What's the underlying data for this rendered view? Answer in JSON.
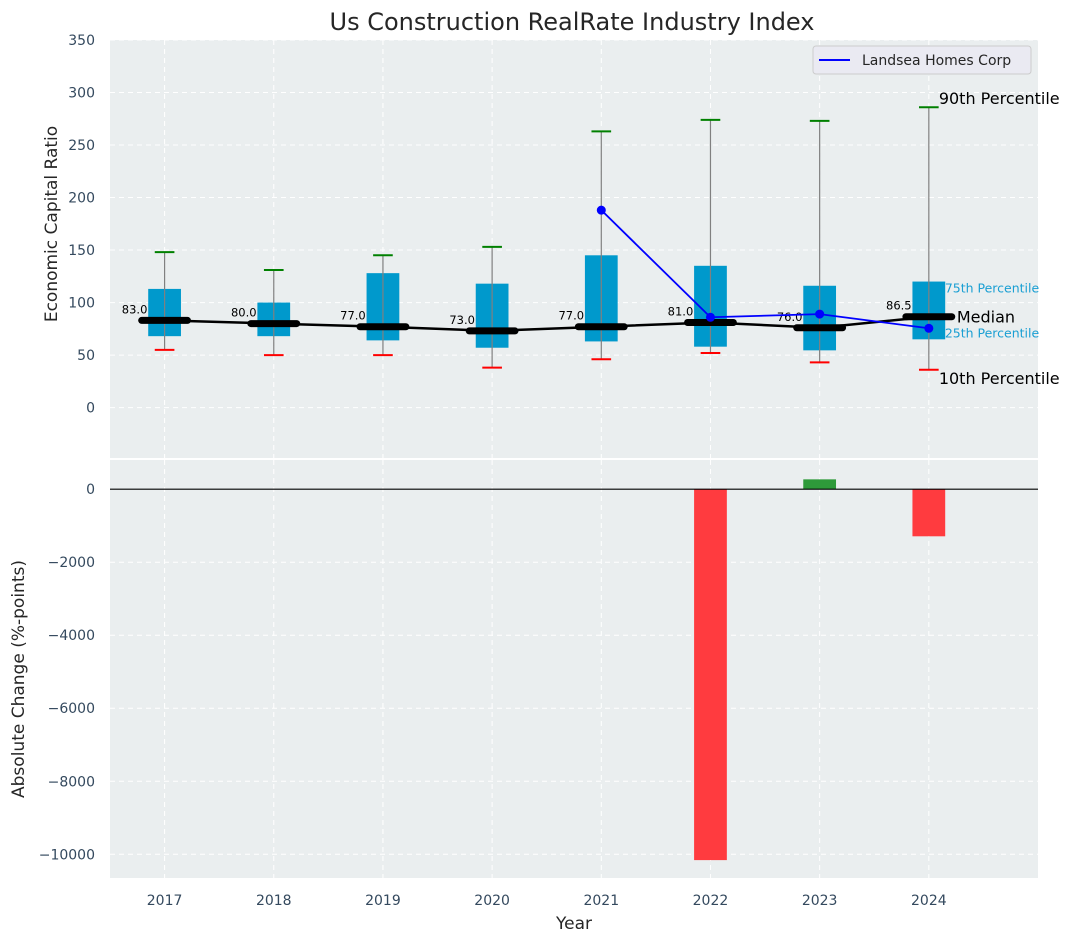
{
  "chart_data": [
    {
      "type": "box",
      "panel": "top",
      "title": "Us Construction RealRate Industry Index",
      "xlabel": "",
      "ylabel": "Economic Capital Ratio",
      "ylim": [
        -48,
        350
      ],
      "xlim": [
        2016.5,
        2025
      ],
      "yticks": [
        0,
        50,
        100,
        150,
        200,
        250,
        300,
        350
      ],
      "grid": true,
      "categories": [
        2017,
        2018,
        2019,
        2020,
        2021,
        2022,
        2023,
        2024
      ],
      "p10": [
        55,
        50,
        50,
        38,
        46,
        52,
        43,
        36
      ],
      "p25": [
        68,
        68,
        64,
        57,
        63,
        58,
        54.5,
        65
      ],
      "median": [
        83.0,
        80.0,
        77.0,
        73.0,
        77.0,
        81.0,
        76.0,
        86.5
      ],
      "p75": [
        113,
        100,
        128,
        118,
        145,
        135,
        116,
        120
      ],
      "p90": [
        148,
        131,
        145,
        153,
        263,
        274,
        273,
        286
      ],
      "median_labels": [
        "83.0",
        "80.0",
        "77.0",
        "73.0",
        "77.0",
        "81.0",
        "76.0",
        "86.5"
      ],
      "series": [
        {
          "name": "Landsea Homes Corp",
          "x": [
            2021,
            2022,
            2023,
            2024
          ],
          "values": [
            188,
            86,
            89,
            75.5
          ],
          "color": "#0000ff"
        }
      ],
      "legend": {
        "entries": [
          "Landsea Homes Corp"
        ],
        "placement": "top-right"
      },
      "annotations": {
        "p90": "90th Percentile",
        "p75": "75th Percentile",
        "median": "Median",
        "p25": "25th Percentile",
        "p10": "10th Percentile"
      },
      "colors": {
        "box": "#0099cc",
        "median": "#000000",
        "p90_cap": "#008000",
        "p10_cap": "#ff0000",
        "whisker": "#808080",
        "annotation_cyan": "#1a9fd3",
        "background": "#eaeeef"
      }
    },
    {
      "type": "bar",
      "panel": "bottom",
      "xlabel": "Year",
      "ylabel": "Absolute Change (%-points)",
      "ylim": [
        -10650,
        800
      ],
      "xlim": [
        2016.5,
        2025
      ],
      "yticks": [
        0,
        -2000,
        -4000,
        -6000,
        -8000,
        -10000
      ],
      "ytick_labels": [
        "0",
        "−2000",
        "−4000",
        "−6000",
        "−8000",
        "−10000"
      ],
      "grid": true,
      "categories": [
        2017,
        2018,
        2019,
        2020,
        2021,
        2022,
        2023,
        2024
      ],
      "x": [
        2022,
        2023,
        2024
      ],
      "values": [
        -10160,
        270,
        -1290
      ],
      "colors": {
        "positive": "#2e9a3a",
        "negative": "#ff3b3f",
        "zero_line": "#000000"
      }
    }
  ]
}
